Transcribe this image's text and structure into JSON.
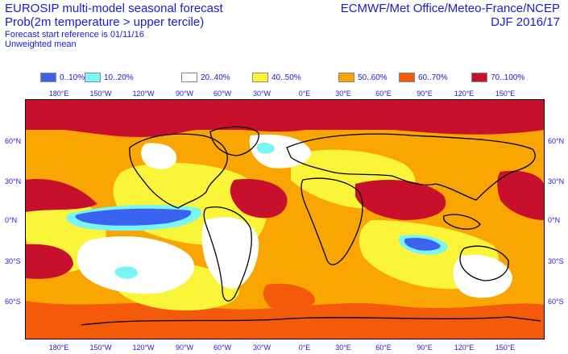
{
  "header": {
    "title_line1": "EUROSIP multi-model seasonal forecast",
    "title_line2": "Prob(2m temperature > upper tercile)",
    "reference": "Forecast start reference is 01/11/16",
    "mean_type": "Unweighted mean",
    "centres": "ECMWF/Met Office/Meteo-France/NCEP",
    "season": "DJF 2016/17"
  },
  "legend": [
    {
      "label": "0..10%",
      "color": "#3a64f0"
    },
    {
      "label": "10..20%",
      "color": "#7af5f7"
    },
    {
      "label": "20..40%",
      "color": "#ffffff"
    },
    {
      "label": "40..50%",
      "color": "#fbf53a"
    },
    {
      "label": "50..60%",
      "color": "#f9a602"
    },
    {
      "label": "60..70%",
      "color": "#f55a0a"
    },
    {
      "label": "70..100%",
      "color": "#c80f2c"
    }
  ],
  "axes": {
    "lon_top": [
      "180°E",
      "150°W",
      "120°W",
      "90°W",
      "60°W",
      "30°W",
      "0°E",
      "30°E",
      "60°E",
      "90°E",
      "120°E",
      "150°E"
    ],
    "lon_bottom": [
      "180°E",
      "150°W",
      "120°W",
      "90°W",
      "60°W",
      "30°W",
      "0°E",
      "30°E",
      "60°E",
      "90°E",
      "120°E",
      "150°E"
    ],
    "lat_left": [
      "60°N",
      "30°N",
      "0°N",
      "30°S",
      "60°S"
    ],
    "lat_right": [
      "60°N",
      "30°N",
      "0°N",
      "30°S",
      "60°S"
    ]
  }
}
